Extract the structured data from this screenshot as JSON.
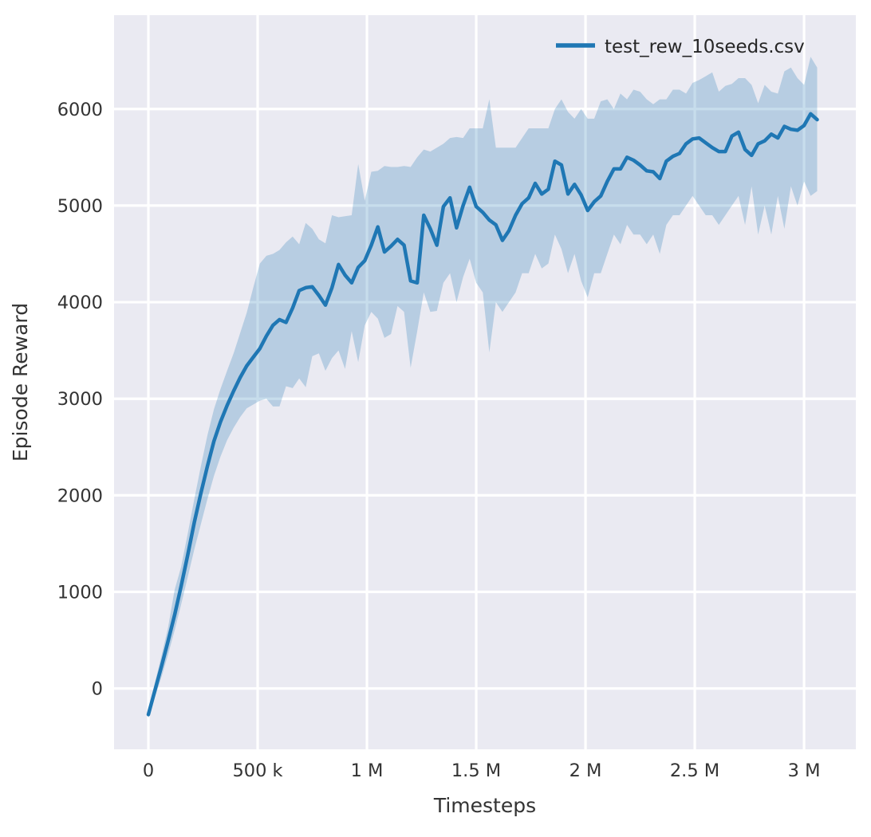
{
  "figure": {
    "kind": "seaborn-darkgrid line plot with confidence band",
    "background_color": "#ffffff",
    "plot_background_color": "#eaeaf2",
    "grid_color": "#ffffff",
    "text_color": "#333333",
    "legend": {
      "label": "test_rew_10seeds.csv",
      "position": "upper right",
      "frame": false
    }
  },
  "chart_data": {
    "type": "line",
    "title": "",
    "xlabel": "Timesteps",
    "ylabel": "Episode Reward",
    "legend_label": "test_rew_10seeds.csv",
    "line_color": "#1f77b4",
    "band_color": "#1f77b4",
    "band_opacity": 0.25,
    "xlim": [
      -157000,
      3237000
    ],
    "ylim": [
      -630,
      6972
    ],
    "x_tick_values": [
      0,
      500000,
      1000000,
      1500000,
      2000000,
      2500000,
      3000000
    ],
    "x_tick_labels": [
      "0",
      "500 k",
      "1 M",
      "1.5 M",
      "2 M",
      "2.5 M",
      "3 M"
    ],
    "y_tick_values": [
      0,
      1000,
      2000,
      3000,
      4000,
      5000,
      6000
    ],
    "y_tick_labels": [
      "0",
      "1000",
      "2000",
      "3000",
      "4000",
      "5000",
      "6000"
    ],
    "grid": true,
    "x": [
      0,
      30000,
      60000,
      90000,
      120000,
      150000,
      180000,
      210000,
      240000,
      270000,
      300000,
      330000,
      360000,
      390000,
      420000,
      450000,
      480000,
      510000,
      540000,
      570000,
      600000,
      630000,
      660000,
      690000,
      720000,
      750000,
      780000,
      810000,
      840000,
      870000,
      900000,
      930000,
      960000,
      990000,
      1020000,
      1050000,
      1080000,
      1110000,
      1140000,
      1170000,
      1200000,
      1230000,
      1260000,
      1290000,
      1320000,
      1350000,
      1380000,
      1410000,
      1440000,
      1470000,
      1500000,
      1530000,
      1560000,
      1590000,
      1620000,
      1650000,
      1680000,
      1710000,
      1740000,
      1770000,
      1800000,
      1830000,
      1860000,
      1890000,
      1920000,
      1950000,
      1980000,
      2010000,
      2040000,
      2070000,
      2100000,
      2130000,
      2160000,
      2190000,
      2220000,
      2250000,
      2280000,
      2310000,
      2340000,
      2370000,
      2400000,
      2430000,
      2460000,
      2490000,
      2520000,
      2550000,
      2580000,
      2610000,
      2640000,
      2670000,
      2700000,
      2730000,
      2760000,
      2790000,
      2820000,
      2850000,
      2880000,
      2910000,
      2940000,
      2970000,
      3000000,
      3030000,
      3060000
    ],
    "series": [
      {
        "name": "test_rew_10seeds.csv",
        "mean": [
          -270,
          -20,
          230,
          490,
          760,
          1060,
          1380,
          1720,
          2020,
          2300,
          2560,
          2760,
          2930,
          3080,
          3220,
          3340,
          3430,
          3520,
          3650,
          3760,
          3820,
          3790,
          3940,
          4120,
          4150,
          4160,
          4070,
          3970,
          4150,
          4390,
          4280,
          4200,
          4360,
          4430,
          4590,
          4780,
          4520,
          4580,
          4650,
          4590,
          4220,
          4200,
          4900,
          4760,
          4590,
          4990,
          5080,
          4770,
          5000,
          5190,
          4990,
          4930,
          4850,
          4800,
          4640,
          4740,
          4900,
          5020,
          5080,
          5230,
          5120,
          5170,
          5460,
          5420,
          5120,
          5220,
          5110,
          4950,
          5040,
          5100,
          5250,
          5380,
          5380,
          5500,
          5470,
          5420,
          5360,
          5350,
          5280,
          5460,
          5510,
          5540,
          5640,
          5690,
          5700,
          5650,
          5600,
          5560,
          5560,
          5720,
          5760,
          5580,
          5520,
          5640,
          5670,
          5740,
          5700,
          5820,
          5790,
          5780,
          5830,
          5950,
          5890
        ],
        "lower": [
          -310,
          -90,
          120,
          350,
          600,
          870,
          1150,
          1440,
          1700,
          1960,
          2200,
          2400,
          2570,
          2700,
          2810,
          2900,
          2940,
          2980,
          3000,
          2920,
          2920,
          3130,
          3110,
          3210,
          3120,
          3440,
          3470,
          3290,
          3420,
          3500,
          3310,
          3700,
          3380,
          3760,
          3900,
          3830,
          3630,
          3670,
          3960,
          3900,
          3320,
          3700,
          4100,
          3900,
          3910,
          4200,
          4300,
          4000,
          4260,
          4450,
          4200,
          4100,
          3480,
          4000,
          3900,
          4000,
          4100,
          4300,
          4300,
          4500,
          4350,
          4400,
          4700,
          4550,
          4300,
          4500,
          4220,
          4050,
          4300,
          4300,
          4500,
          4700,
          4600,
          4800,
          4700,
          4700,
          4600,
          4700,
          4500,
          4800,
          4900,
          4900,
          5000,
          5100,
          5000,
          4900,
          4900,
          4800,
          4900,
          5000,
          5100,
          4800,
          5200,
          4700,
          5000,
          4700,
          5100,
          4760,
          5200,
          5000,
          5250,
          5100,
          5150
        ],
        "upper": [
          -230,
          60,
          340,
          630,
          1020,
          1260,
          1600,
          1960,
          2300,
          2620,
          2890,
          3100,
          3290,
          3470,
          3680,
          3890,
          4150,
          4400,
          4480,
          4500,
          4540,
          4620,
          4680,
          4600,
          4820,
          4760,
          4650,
          4610,
          4900,
          4880,
          4890,
          4900,
          5430,
          5050,
          5350,
          5360,
          5410,
          5400,
          5400,
          5410,
          5400,
          5500,
          5580,
          5560,
          5600,
          5640,
          5700,
          5710,
          5700,
          5800,
          5800,
          5800,
          6100,
          5600,
          5600,
          5600,
          5600,
          5700,
          5800,
          5800,
          5800,
          5800,
          6000,
          6100,
          5970,
          5900,
          6000,
          5900,
          5900,
          6080,
          6100,
          6000,
          6160,
          6100,
          6200,
          6180,
          6100,
          6050,
          6100,
          6100,
          6200,
          6200,
          6160,
          6270,
          6300,
          6340,
          6380,
          6180,
          6240,
          6260,
          6320,
          6320,
          6250,
          6060,
          6250,
          6180,
          6160,
          6390,
          6430,
          6320,
          6250,
          6540,
          6430
        ]
      }
    ]
  }
}
